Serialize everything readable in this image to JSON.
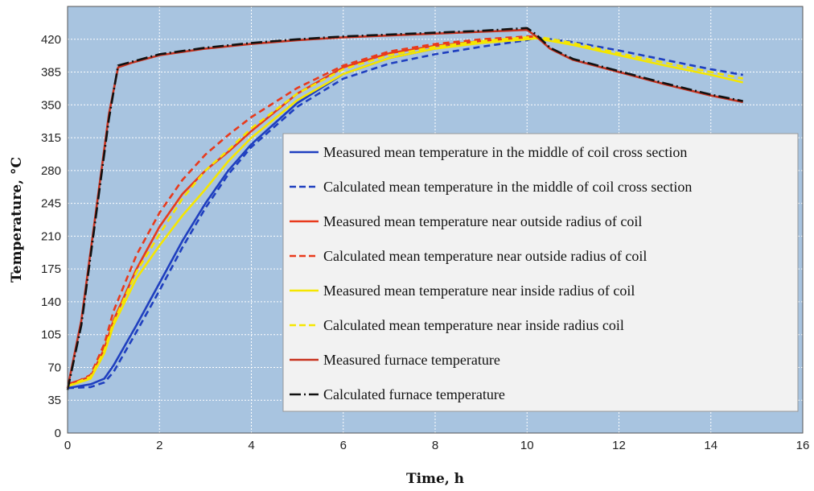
{
  "chart_data": {
    "type": "line",
    "title": "",
    "xlabel": "Time, h",
    "ylabel": "Temperature, °C",
    "xlim": [
      0,
      16
    ],
    "ylim": [
      0,
      455
    ],
    "xticks": [
      0,
      2,
      4,
      6,
      8,
      10,
      12,
      14,
      16
    ],
    "yticks": [
      0,
      35,
      70,
      105,
      140,
      175,
      210,
      245,
      280,
      315,
      350,
      385,
      420
    ],
    "grid": true,
    "legend_position": "center-right",
    "plot_background": "#A8C4E0",
    "series": [
      {
        "name": "Measured mean temperature in the middle of coil cross section",
        "color": "#1F3FBF",
        "dash": "solid",
        "x": [
          0,
          0.5,
          0.8,
          1.0,
          1.5,
          2.0,
          2.5,
          3.0,
          3.5,
          4.0,
          5.0,
          6.0,
          7.0,
          8.0,
          9.0,
          10.0,
          10.2
        ],
        "y": [
          48,
          52,
          58,
          72,
          115,
          160,
          205,
          245,
          280,
          308,
          352,
          383,
          400,
          410,
          417,
          421,
          422
        ]
      },
      {
        "name": "Calculated mean temperature in the middle of coil cross section",
        "color": "#1F3FBF",
        "dash": "dashed",
        "x": [
          0,
          0.5,
          0.8,
          1.0,
          1.5,
          2.0,
          2.5,
          3.0,
          3.5,
          4.0,
          5.0,
          6.0,
          7.0,
          8.0,
          9.0,
          10.0,
          10.2,
          11.0,
          12.0,
          13.0,
          14.0,
          14.7
        ],
        "y": [
          48,
          49,
          54,
          65,
          108,
          152,
          198,
          240,
          276,
          305,
          348,
          378,
          394,
          404,
          412,
          419,
          422,
          417,
          408,
          398,
          388,
          382
        ]
      },
      {
        "name": "Measured mean temperature near outside radius of coil",
        "color": "#E83A1C",
        "dash": "solid",
        "x": [
          0,
          0.5,
          0.8,
          1.0,
          1.5,
          2.0,
          2.5,
          3.0,
          3.5,
          4.0,
          5.0,
          6.0,
          7.0,
          8.0,
          9.0,
          10.0,
          10.2
        ],
        "y": [
          52,
          60,
          90,
          120,
          175,
          220,
          255,
          280,
          300,
          322,
          362,
          390,
          405,
          413,
          418,
          421,
          422
        ]
      },
      {
        "name": "Calculated mean temperature near outside radius of coil",
        "color": "#E83A1C",
        "dash": "dashed",
        "x": [
          0,
          0.5,
          0.8,
          1.0,
          1.5,
          2.0,
          2.5,
          3.0,
          3.5,
          4.0,
          5.0,
          6.0,
          7.0,
          8.0,
          9.0,
          10.0,
          10.2
        ],
        "y": [
          50,
          62,
          95,
          130,
          190,
          235,
          270,
          297,
          318,
          337,
          368,
          392,
          407,
          415,
          420,
          423,
          423
        ]
      },
      {
        "name": "Measured mean temperature near inside radius of coil",
        "color": "#F5E600",
        "dash": "solid",
        "x": [
          0,
          0.5,
          0.8,
          1.0,
          1.5,
          2.0,
          2.5,
          3.0,
          3.5,
          4.0,
          5.0,
          6.0,
          7.0,
          8.0,
          9.0,
          10.0,
          10.2,
          11.0,
          12.0,
          13.0,
          14.0,
          14.7
        ],
        "y": [
          50,
          58,
          85,
          115,
          165,
          200,
          232,
          260,
          290,
          315,
          355,
          383,
          400,
          410,
          416,
          420,
          421,
          414,
          403,
          392,
          382,
          374
        ]
      },
      {
        "name": "Calculated mean temperature near inside radius coil",
        "color": "#F5E600",
        "dash": "dashed",
        "x": [
          0,
          0.5,
          0.8,
          1.0,
          1.5,
          2.0,
          2.5,
          3.0,
          3.5,
          4.0,
          5.0,
          6.0,
          7.0,
          8.0,
          9.0,
          10.0,
          10.2,
          11.0,
          12.0,
          13.0,
          14.0,
          14.7
        ],
        "y": [
          50,
          60,
          88,
          118,
          172,
          212,
          250,
          280,
          302,
          325,
          362,
          388,
          403,
          412,
          418,
          422,
          423,
          416,
          405,
          395,
          385,
          378
        ]
      },
      {
        "name": "Measured furnace temperature",
        "color": "#C8321E",
        "dash": "solid",
        "x": [
          0,
          0.3,
          0.6,
          0.9,
          1.1,
          1.4,
          2.0,
          3.0,
          4.0,
          5.0,
          6.0,
          7.0,
          8.0,
          9.0,
          10.0,
          10.2,
          10.5,
          11.0,
          12.0,
          13.0,
          14.0,
          14.7
        ],
        "y": [
          48,
          120,
          230,
          340,
          390,
          395,
          403,
          410,
          415,
          419,
          422,
          424,
          426,
          428,
          430,
          423,
          410,
          398,
          385,
          372,
          360,
          353
        ]
      },
      {
        "name": "Calculated furnace temperature",
        "color": "#111111",
        "dash": "dashdot",
        "x": [
          0,
          0.3,
          0.6,
          0.9,
          1.1,
          1.4,
          2.0,
          3.0,
          4.0,
          5.0,
          6.0,
          7.0,
          8.0,
          9.0,
          10.0,
          10.2,
          10.5,
          11.0,
          12.0,
          13.0,
          14.0,
          14.7
        ],
        "y": [
          46,
          115,
          225,
          335,
          392,
          396,
          404,
          411,
          416,
          420,
          423,
          425,
          427,
          429,
          432,
          425,
          411,
          399,
          386,
          373,
          361,
          354
        ]
      }
    ]
  }
}
